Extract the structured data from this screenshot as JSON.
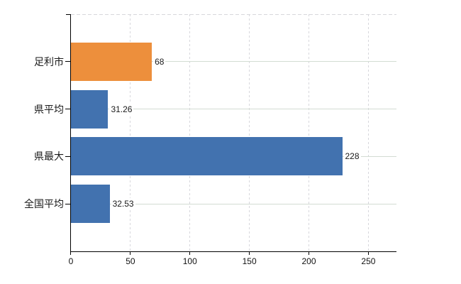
{
  "chart_data": {
    "type": "bar",
    "orientation": "horizontal",
    "title": "",
    "xlabel": "",
    "ylabel": "",
    "categories": [
      "足利市",
      "県平均",
      "県最大",
      "全国平均"
    ],
    "values": [
      68,
      31.26,
      228,
      32.53
    ],
    "value_labels": [
      "68",
      "31.26",
      "228",
      "32.53"
    ],
    "bar_colors": [
      "#ED8F3C",
      "#4272AF",
      "#4272AF",
      "#4272AF"
    ],
    "x_ticks": [
      0,
      50,
      100,
      150,
      200,
      250
    ],
    "x_tick_labels": [
      "0",
      "50",
      "100",
      "150",
      "200",
      "250"
    ],
    "xlim": [
      0,
      273.6
    ],
    "grid": true,
    "legend": "none"
  },
  "colors": {
    "bar_orange": "#ED8F3C",
    "bar_blue": "#4272AF",
    "grid_horizontal": "#D3DCD3",
    "grid_vertical": "#D7D7DC",
    "axis": "#000000",
    "text": "#1A1A1A",
    "background": "#FFFFFF"
  }
}
